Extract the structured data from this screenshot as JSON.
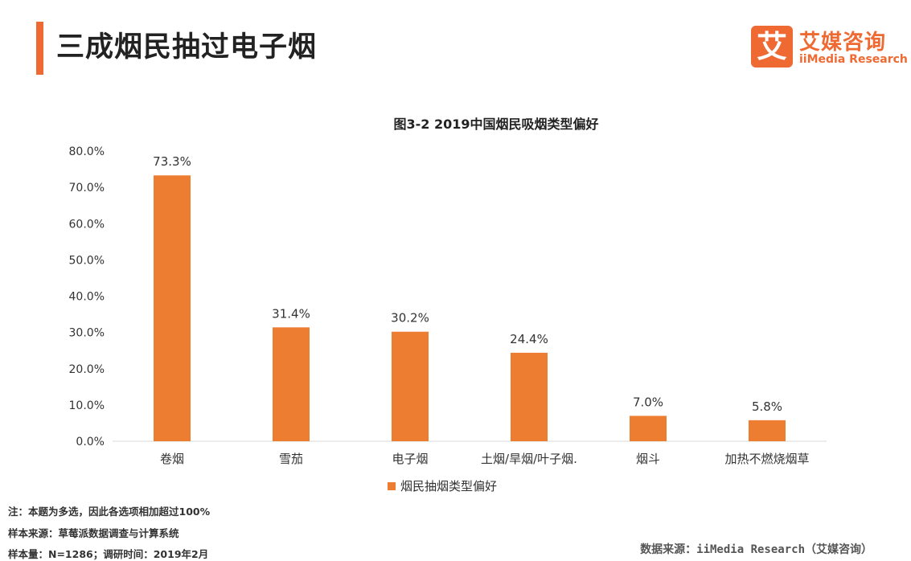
{
  "header": {
    "title": "三成烟民抽过电子烟"
  },
  "logo": {
    "mark": "艾",
    "name_cn": "艾媒咨询",
    "name_en": "iiMedia Research"
  },
  "colors": {
    "accent": "#ee6a32",
    "bar": "#ed7d31",
    "axis": "#d9d9d9",
    "text": "#333333"
  },
  "chart_data": {
    "type": "bar",
    "title": "图3-2 2019中国烟民吸烟类型偏好",
    "categories": [
      "卷烟",
      "雪茄",
      "电子烟",
      "土烟/旱烟/叶子烟.",
      "烟斗",
      "加热不燃烧烟草"
    ],
    "series": [
      {
        "name": "烟民抽烟类型偏好",
        "values": [
          73.3,
          31.4,
          30.2,
          24.4,
          7.0,
          5.8
        ]
      }
    ],
    "data_labels": [
      "73.3%",
      "31.4%",
      "30.2%",
      "24.4%",
      "7.0%",
      "5.8%"
    ],
    "y_ticks": [
      "0.0%",
      "10.0%",
      "20.0%",
      "30.0%",
      "40.0%",
      "50.0%",
      "60.0%",
      "70.0%",
      "80.0%"
    ],
    "ylim": [
      0,
      80
    ],
    "ytick_step": 10,
    "xlabel": "",
    "ylabel": "",
    "grid": false,
    "legend_position": "bottom-center"
  },
  "footnotes": {
    "note": "注：本题为多选，因此各选项相加超过100%",
    "sample_source": "样本来源：草莓派数据调查与计算系统",
    "sample_size": "样本量：N=1286；调研时间：2019年2月"
  },
  "source": "数据来源：iiMedia Research（艾媒咨询）"
}
